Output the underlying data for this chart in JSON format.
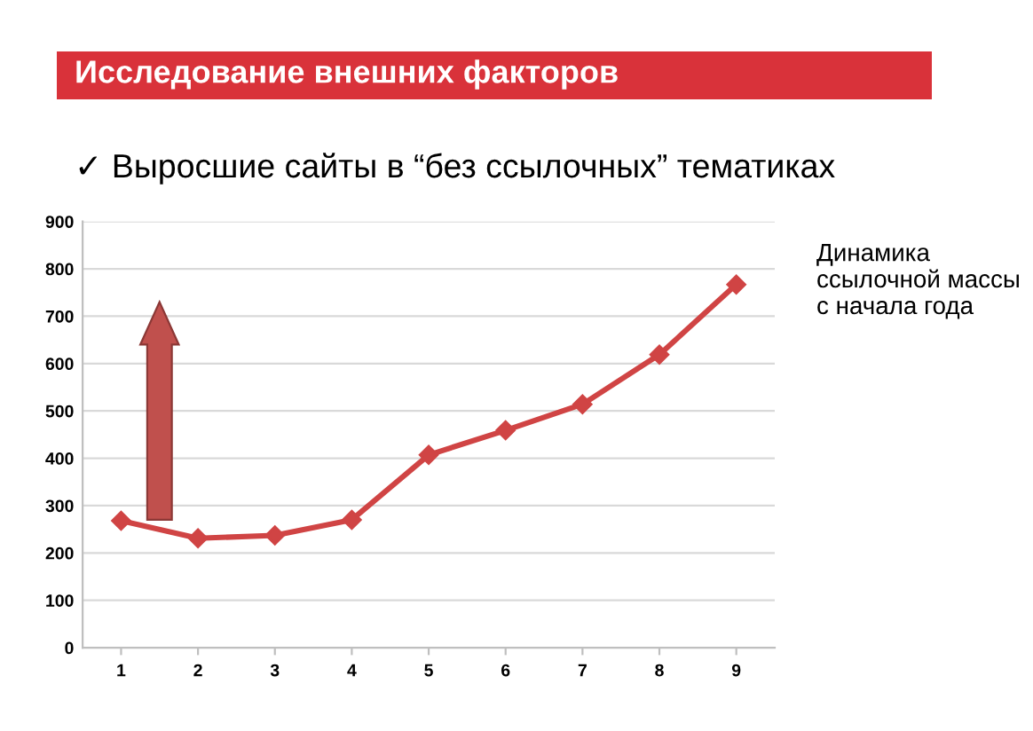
{
  "chart_data": {
    "type": "line",
    "title": "Исследование внешних факторов",
    "subtitle": "✓ Выросшие сайты в “без ссылочных” тематиках",
    "categories": [
      "1",
      "2",
      "3",
      "4",
      "5",
      "6",
      "7",
      "8",
      "9"
    ],
    "values": [
      268,
      231,
      237,
      270,
      407,
      459,
      514,
      619,
      767
    ],
    "color": "#d04444",
    "marker": "diamond",
    "line_style": "solid",
    "ylim": [
      0,
      900
    ],
    "yticks": [
      0,
      100,
      200,
      300,
      400,
      500,
      600,
      700,
      800,
      900
    ],
    "grid": "y",
    "annotations": [
      "Динамика ссылочной массы с начала года"
    ]
  }
}
